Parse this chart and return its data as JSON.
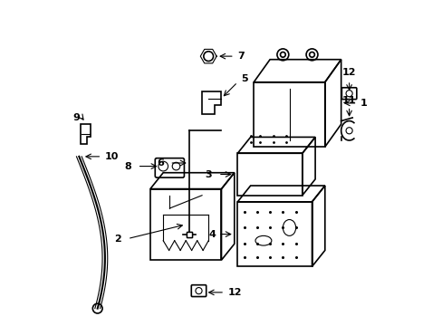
{
  "title": "",
  "background_color": "#ffffff",
  "line_color": "#000000",
  "line_width": 1.2,
  "figsize": [
    4.89,
    3.6
  ],
  "dpi": 100
}
